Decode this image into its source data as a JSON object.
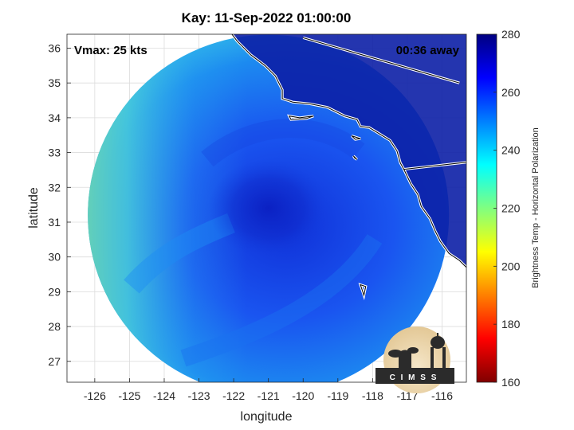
{
  "title": "Kay: 11-Sep-2022 01:00:00",
  "vmax_label": "Vmax: 25 kts",
  "time_label": "00:36 away",
  "x_axis": {
    "label": "longitude",
    "ticks": [
      -126,
      -125,
      -124,
      -123,
      -122,
      -121,
      -120,
      -119,
      -118,
      -117,
      -116
    ],
    "range": [
      -126.8,
      -115.3
    ]
  },
  "y_axis": {
    "label": "latitude",
    "ticks": [
      27,
      28,
      29,
      30,
      31,
      32,
      33,
      34,
      35,
      36
    ],
    "range": [
      26.4,
      36.4
    ]
  },
  "colorbar": {
    "label": "Brightness Temp - Horizontal Polarization",
    "ticks": [
      160,
      180,
      200,
      220,
      240,
      260,
      280
    ],
    "range": [
      160,
      280
    ],
    "colormap": "jet",
    "colors": [
      "#800000",
      "#ff0000",
      "#ff8000",
      "#ffff00",
      "#80ff80",
      "#00ffff",
      "#0080ff",
      "#0000ff",
      "#000080"
    ]
  },
  "map": {
    "storm_center": {
      "lon": -121.0,
      "lat": 31.4
    },
    "swath_center": {
      "lon": -121.0,
      "lat": 31.2
    },
    "swath_radius_deg": 5.2
  },
  "logo": {
    "text": "C I M S S"
  }
}
